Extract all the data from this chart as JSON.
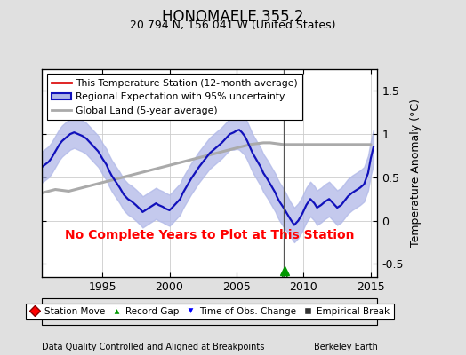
{
  "title": "HONOMAELE 355.2",
  "subtitle": "20.794 N, 156.041 W (United States)",
  "ylabel": "Temperature Anomaly (°C)",
  "xlabel_left": "Data Quality Controlled and Aligned at Breakpoints",
  "xlabel_right": "Berkeley Earth",
  "no_data_text": "No Complete Years to Plot at This Station",
  "xlim": [
    1990.5,
    2015.5
  ],
  "ylim": [
    -0.65,
    1.75
  ],
  "yticks": [
    -0.5,
    0,
    0.5,
    1.0,
    1.5
  ],
  "xticks": [
    1995,
    2000,
    2005,
    2010,
    2015
  ],
  "bg_color": "#e0e0e0",
  "plot_bg_color": "#ffffff",
  "regional_line_color": "#1111bb",
  "regional_fill_color": "#b0b8e8",
  "station_line_color": "#dd1111",
  "global_line_color": "#aaaaaa",
  "record_gap_x": 2008.6,
  "vline_x": 2008.5,
  "regional_x": [
    1990.5,
    1991.0,
    1991.2,
    1991.5,
    1991.8,
    1992.0,
    1992.3,
    1992.6,
    1992.9,
    1993.2,
    1993.5,
    1993.8,
    1994.1,
    1994.4,
    1994.7,
    1995.0,
    1995.3,
    1995.5,
    1995.7,
    1996.0,
    1996.3,
    1996.6,
    1996.9,
    1997.2,
    1997.5,
    1997.7,
    1997.9,
    1998.0,
    1998.2,
    1998.5,
    1998.8,
    1999.0,
    1999.2,
    1999.5,
    1999.7,
    2000.0,
    2000.2,
    2000.5,
    2000.8,
    2001.0,
    2001.3,
    2001.6,
    2001.9,
    2002.2,
    2002.5,
    2002.8,
    2003.0,
    2003.3,
    2003.6,
    2003.9,
    2004.2,
    2004.5,
    2004.8,
    2005.0,
    2005.2,
    2005.4,
    2005.6,
    2005.8,
    2006.0,
    2006.2,
    2006.5,
    2006.8,
    2007.0,
    2007.3,
    2007.6,
    2007.9,
    2008.0,
    2008.2,
    2008.5,
    2009.0,
    2009.3,
    2009.6,
    2009.9,
    2010.2,
    2010.5,
    2010.8,
    2011.0,
    2011.3,
    2011.6,
    2011.9,
    2012.2,
    2012.5,
    2012.8,
    2013.0,
    2013.3,
    2013.6,
    2013.9,
    2014.2,
    2014.5,
    2014.8,
    2015.0,
    2015.2
  ],
  "regional_y": [
    0.62,
    0.68,
    0.72,
    0.8,
    0.88,
    0.92,
    0.96,
    1.0,
    1.02,
    1.0,
    0.98,
    0.95,
    0.9,
    0.85,
    0.8,
    0.72,
    0.65,
    0.58,
    0.52,
    0.45,
    0.38,
    0.3,
    0.25,
    0.22,
    0.18,
    0.15,
    0.12,
    0.1,
    0.12,
    0.15,
    0.18,
    0.2,
    0.18,
    0.16,
    0.14,
    0.12,
    0.15,
    0.2,
    0.25,
    0.32,
    0.4,
    0.48,
    0.55,
    0.62,
    0.68,
    0.74,
    0.78,
    0.82,
    0.86,
    0.9,
    0.95,
    1.0,
    1.02,
    1.04,
    1.05,
    1.02,
    0.98,
    0.92,
    0.85,
    0.78,
    0.7,
    0.62,
    0.55,
    0.48,
    0.4,
    0.32,
    0.28,
    0.22,
    0.15,
    0.02,
    -0.05,
    0.0,
    0.08,
    0.18,
    0.25,
    0.2,
    0.15,
    0.18,
    0.22,
    0.25,
    0.2,
    0.15,
    0.18,
    0.22,
    0.28,
    0.32,
    0.35,
    0.38,
    0.42,
    0.55,
    0.72,
    0.85
  ],
  "regional_upper": [
    0.8,
    0.86,
    0.9,
    0.98,
    1.06,
    1.1,
    1.14,
    1.18,
    1.2,
    1.18,
    1.16,
    1.13,
    1.08,
    1.03,
    0.98,
    0.9,
    0.83,
    0.76,
    0.7,
    0.63,
    0.56,
    0.48,
    0.43,
    0.4,
    0.36,
    0.33,
    0.3,
    0.28,
    0.3,
    0.33,
    0.36,
    0.38,
    0.36,
    0.34,
    0.32,
    0.3,
    0.33,
    0.38,
    0.43,
    0.5,
    0.58,
    0.66,
    0.73,
    0.8,
    0.86,
    0.92,
    0.96,
    1.0,
    1.04,
    1.08,
    1.13,
    1.18,
    1.22,
    1.25,
    1.28,
    1.25,
    1.2,
    1.14,
    1.07,
    1.0,
    0.92,
    0.84,
    0.77,
    0.7,
    0.62,
    0.54,
    0.5,
    0.44,
    0.37,
    0.22,
    0.15,
    0.2,
    0.28,
    0.38,
    0.45,
    0.4,
    0.35,
    0.38,
    0.42,
    0.45,
    0.4,
    0.35,
    0.38,
    0.42,
    0.48,
    0.52,
    0.55,
    0.58,
    0.62,
    0.75,
    0.92,
    1.05
  ],
  "regional_lower": [
    0.44,
    0.5,
    0.54,
    0.62,
    0.7,
    0.74,
    0.78,
    0.82,
    0.84,
    0.82,
    0.8,
    0.77,
    0.72,
    0.67,
    0.62,
    0.54,
    0.47,
    0.4,
    0.34,
    0.27,
    0.2,
    0.12,
    0.07,
    0.04,
    0.0,
    -0.03,
    -0.06,
    -0.08,
    -0.06,
    -0.03,
    0.0,
    0.02,
    0.0,
    -0.02,
    -0.04,
    -0.06,
    -0.03,
    0.02,
    0.07,
    0.14,
    0.22,
    0.3,
    0.37,
    0.44,
    0.5,
    0.56,
    0.6,
    0.64,
    0.68,
    0.72,
    0.77,
    0.82,
    0.82,
    0.83,
    0.82,
    0.79,
    0.76,
    0.7,
    0.63,
    0.56,
    0.48,
    0.4,
    0.33,
    0.26,
    0.18,
    0.1,
    0.06,
    0.0,
    -0.07,
    -0.18,
    -0.25,
    -0.2,
    -0.12,
    -0.02,
    0.05,
    0.0,
    -0.05,
    -0.02,
    0.02,
    0.05,
    0.0,
    -0.05,
    -0.02,
    0.02,
    0.08,
    0.12,
    0.15,
    0.18,
    0.22,
    0.35,
    0.52,
    0.65
  ],
  "global_x": [
    1990.5,
    1991.0,
    1991.5,
    1992.0,
    1992.5,
    1993.0,
    1993.5,
    1994.0,
    1994.5,
    1995.0,
    1995.5,
    1996.0,
    1996.5,
    1997.0,
    1997.5,
    1998.0,
    1998.5,
    1999.0,
    1999.5,
    2000.0,
    2000.5,
    2001.0,
    2001.5,
    2002.0,
    2002.5,
    2003.0,
    2003.5,
    2004.0,
    2004.5,
    2005.0,
    2005.5,
    2006.0,
    2006.5,
    2007.0,
    2007.5,
    2008.0,
    2008.5,
    2009.0,
    2009.5,
    2010.0,
    2010.5,
    2011.0,
    2011.5,
    2012.0,
    2012.5,
    2013.0,
    2013.5,
    2014.0,
    2014.5,
    2015.0
  ],
  "global_y": [
    0.32,
    0.34,
    0.36,
    0.35,
    0.34,
    0.36,
    0.38,
    0.4,
    0.42,
    0.44,
    0.46,
    0.48,
    0.5,
    0.52,
    0.54,
    0.56,
    0.58,
    0.6,
    0.62,
    0.64,
    0.66,
    0.68,
    0.7,
    0.72,
    0.74,
    0.76,
    0.78,
    0.8,
    0.82,
    0.84,
    0.86,
    0.88,
    0.89,
    0.9,
    0.9,
    0.89,
    0.88,
    0.88,
    0.88,
    0.88,
    0.88,
    0.88,
    0.88,
    0.88,
    0.88,
    0.88,
    0.88,
    0.88,
    0.88,
    0.88
  ]
}
